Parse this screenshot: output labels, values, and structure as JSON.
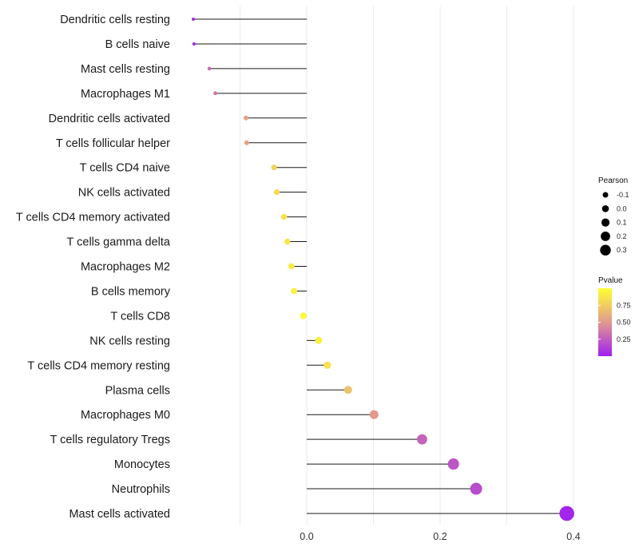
{
  "chart_data": {
    "type": "lollipop",
    "xlabel": "",
    "ylabel": "",
    "xlim": [
      -0.2,
      0.4
    ],
    "x_ticks": [
      0.0,
      0.2,
      0.4
    ],
    "x_tick_labels": [
      "0.0",
      "0.2",
      "0.4"
    ],
    "categories": [
      "Dendritic cells resting",
      "B cells naive",
      "Mast cells resting",
      "Macrophages M1",
      "Dendritic cells activated",
      "T cells follicular helper",
      "T cells CD4 naive",
      "NK cells activated",
      "T cells CD4 memory activated",
      "T cells gamma delta",
      "Macrophages M2",
      "B cells memory",
      "T cells CD8",
      "NK cells resting",
      "T cells CD4 memory resting",
      "Plasma cells",
      "Macrophages M0",
      "T cells regulatory  Tregs",
      "Monocytes",
      "Neutrophils",
      "Mast cells activated"
    ],
    "pearson": [
      -0.17,
      -0.169,
      -0.146,
      -0.137,
      -0.091,
      -0.09,
      -0.049,
      -0.045,
      -0.034,
      -0.029,
      -0.023,
      -0.019,
      -0.005,
      0.018,
      0.031,
      0.062,
      0.101,
      0.173,
      0.22,
      0.254,
      0.39
    ],
    "pvalue": [
      0.03,
      0.03,
      0.3,
      0.35,
      0.55,
      0.55,
      0.78,
      0.82,
      0.85,
      0.87,
      0.9,
      0.92,
      0.97,
      0.92,
      0.85,
      0.7,
      0.5,
      0.28,
      0.22,
      0.18,
      0.02
    ],
    "legend": {
      "size": {
        "title": "Pearson",
        "labels": [
          "-0.1",
          "0.0",
          "0.1",
          "0.2",
          "0.3"
        ],
        "values": [
          -0.1,
          0.0,
          0.1,
          0.2,
          0.3
        ]
      },
      "color": {
        "title": "Pvalue",
        "labels": [
          "0.75",
          "0.50",
          "0.25"
        ],
        "values": [
          0.75,
          0.5,
          0.25
        ],
        "range": [
          0.0,
          1.0
        ],
        "low_color": "#a020f0",
        "mid_color": "#e19a8e",
        "high_color": "#ffff33"
      }
    }
  }
}
